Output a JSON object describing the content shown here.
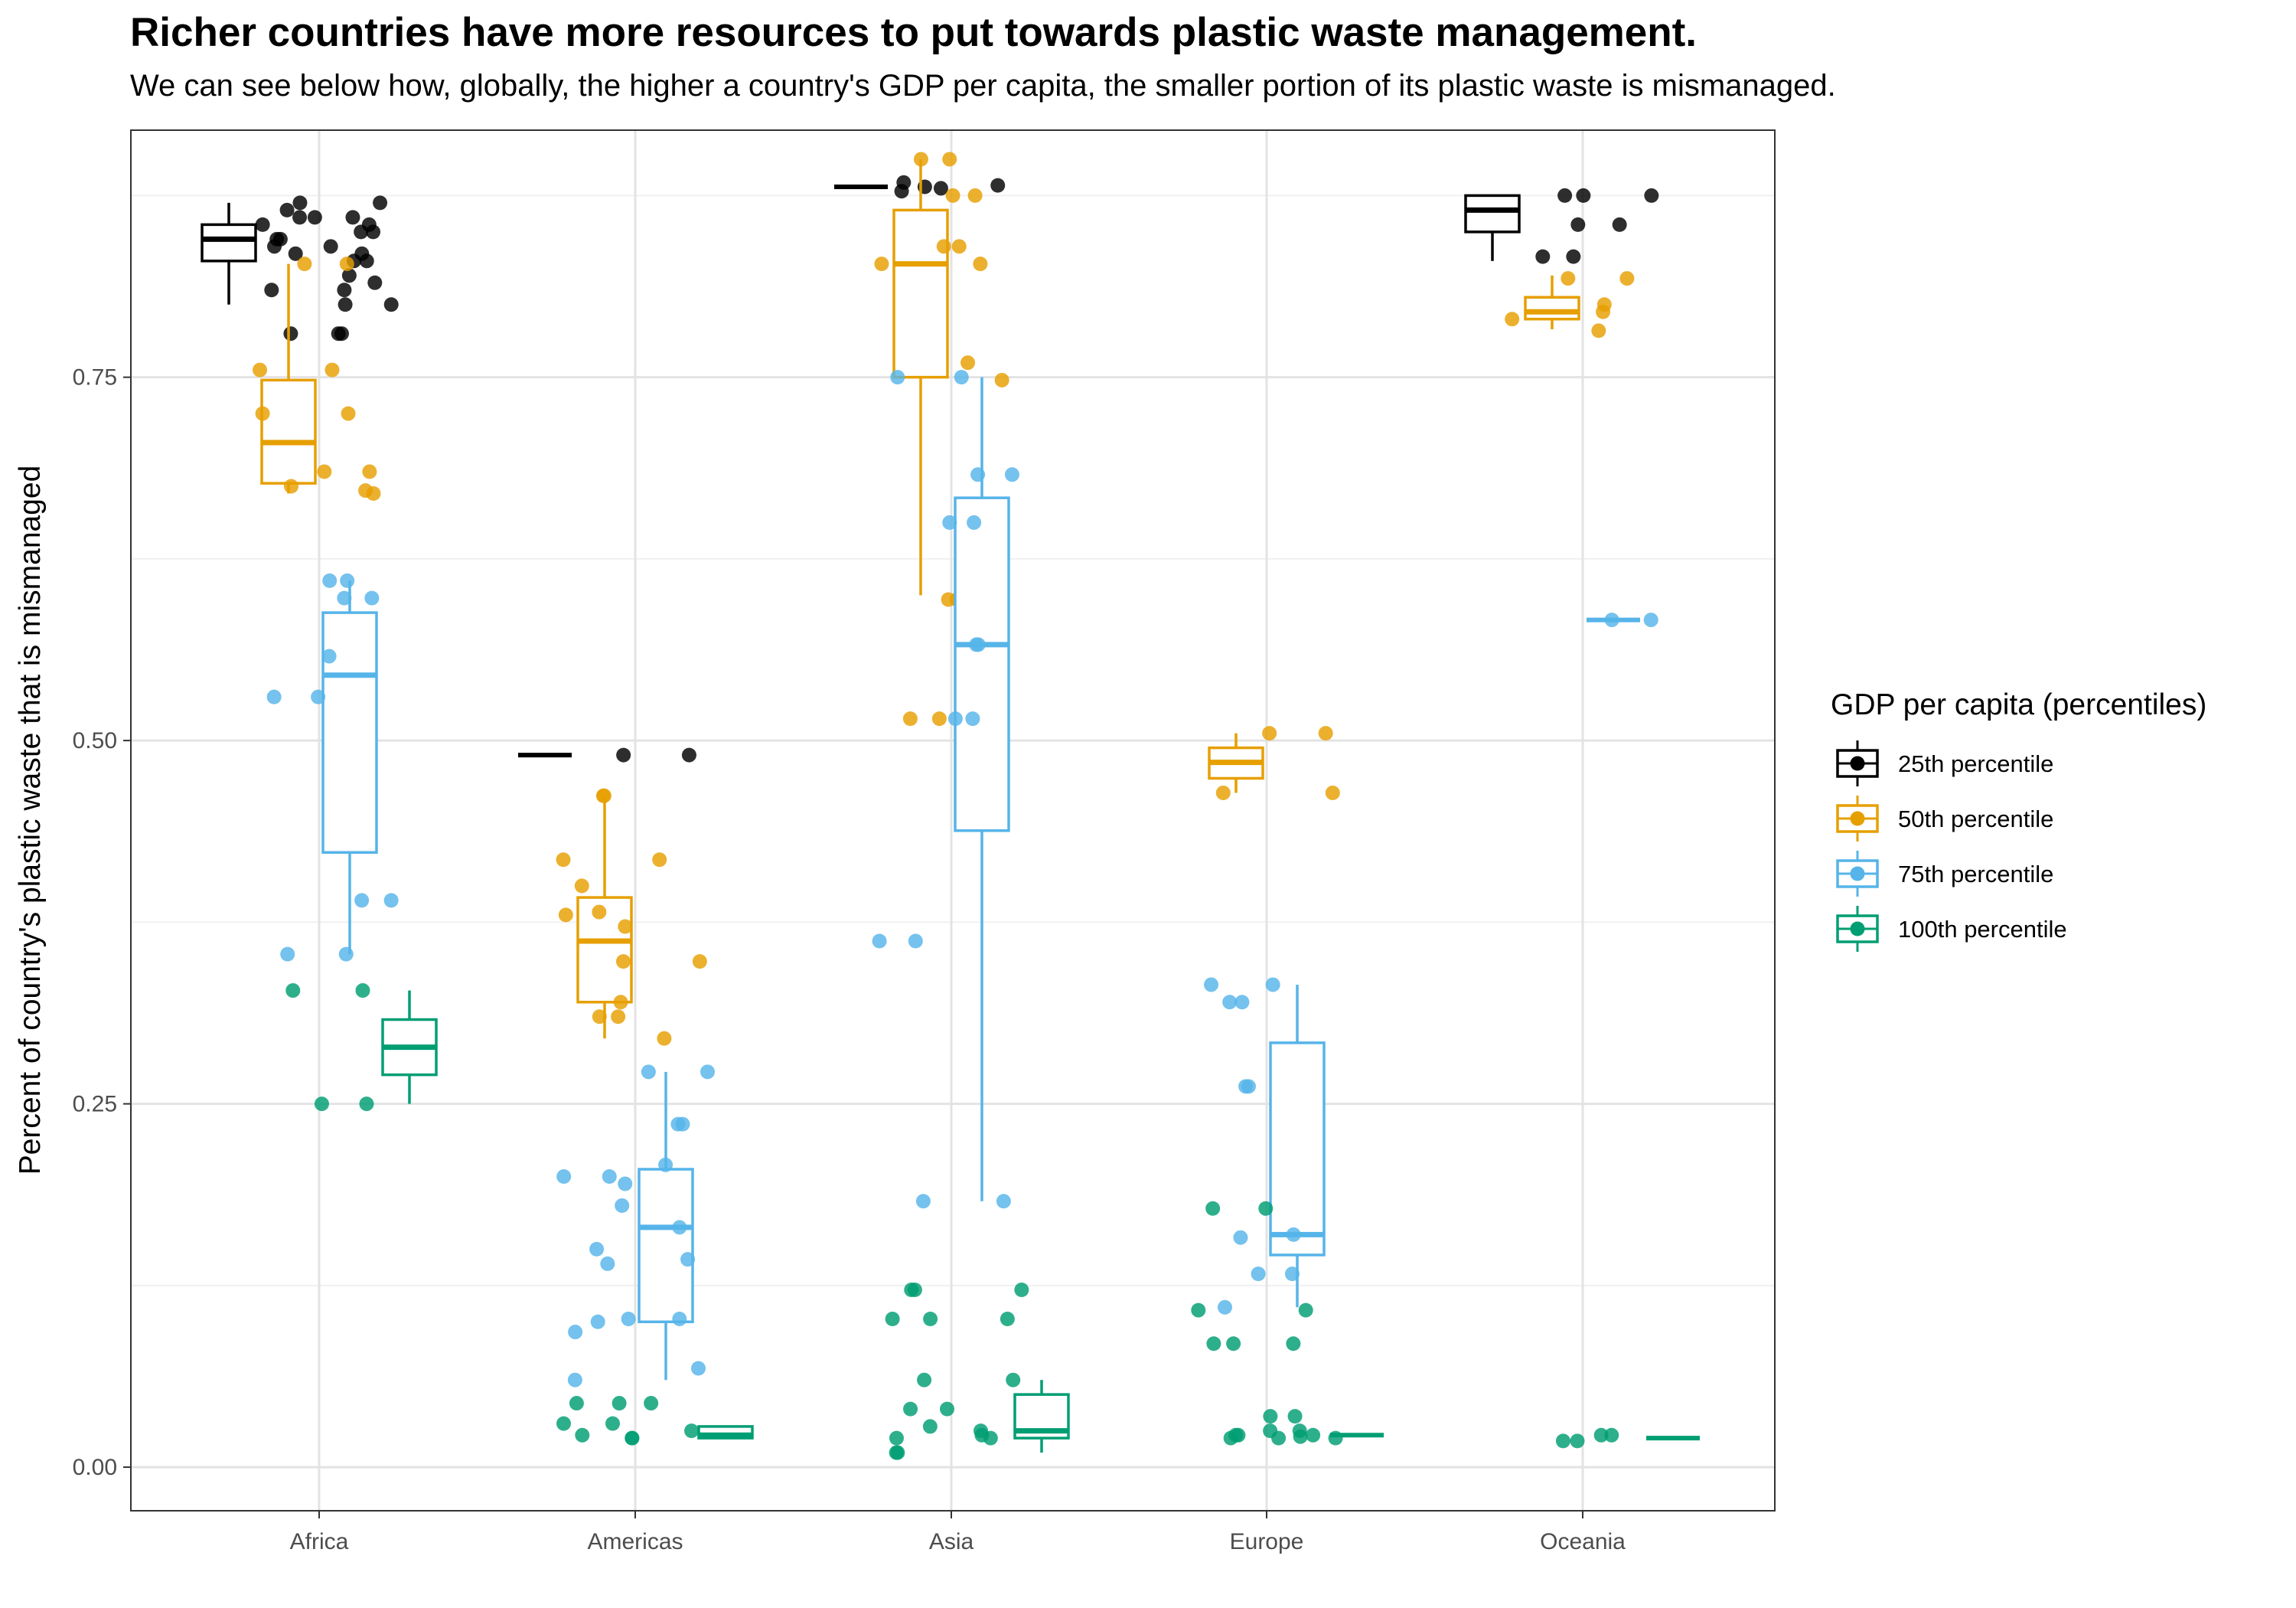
{
  "title": "Richer countries have more resources to put towards plastic waste management.",
  "subtitle": "We can see below how, globally, the higher a country's GDP per capita, the smaller portion of its plastic waste is mismanaged.",
  "chart_data": {
    "type": "box+jitter",
    "title": "Richer countries have more resources to put towards plastic waste management.",
    "subtitle": "We can see below how, globally, the higher a country's GDP per capita, the smaller portion of its plastic waste is mismanaged.",
    "xlabel": "",
    "ylabel": "Percent of country's plastic waste that is mismanaged",
    "categories": [
      "Africa",
      "Americas",
      "Asia",
      "Europe",
      "Oceania"
    ],
    "ylim": [
      -0.03,
      0.92
    ],
    "yticks": [
      0.0,
      0.25,
      0.5,
      0.75
    ],
    "ytick_labels": [
      "0.00",
      "0.25",
      "0.50",
      "0.75"
    ],
    "grid": true,
    "legend": {
      "title": "GDP per capita (percentiles)",
      "position": "right"
    },
    "series": [
      {
        "name": "25th percentile",
        "color": "#000000",
        "boxes": [
          {
            "category": "Africa",
            "ymin": 0.8,
            "q1": 0.83,
            "median": 0.845,
            "q3": 0.855,
            "ymax": 0.87
          },
          {
            "category": "Americas",
            "ymin": 0.49,
            "q1": 0.49,
            "median": 0.49,
            "q3": 0.49,
            "ymax": 0.49
          },
          {
            "category": "Asia",
            "ymin": 0.881,
            "q1": 0.881,
            "median": 0.881,
            "q3": 0.881,
            "ymax": 0.881
          },
          {
            "category": "Oceania",
            "ymin": 0.83,
            "q1": 0.85,
            "median": 0.865,
            "q3": 0.875,
            "ymax": 0.875
          }
        ],
        "points": [
          {
            "category": "Africa",
            "values": [
              0.78,
              0.78,
              0.78,
              0.8,
              0.8,
              0.81,
              0.81,
              0.815,
              0.82,
              0.83,
              0.83,
              0.835,
              0.835,
              0.84,
              0.84,
              0.845,
              0.845,
              0.85,
              0.85,
              0.855,
              0.855,
              0.86,
              0.86,
              0.86,
              0.865,
              0.87,
              0.87
            ]
          },
          {
            "category": "Americas",
            "values": [
              0.49,
              0.49
            ]
          },
          {
            "category": "Asia",
            "values": [
              0.88,
              0.882,
              0.884,
              0.878,
              0.881
            ]
          },
          {
            "category": "Oceania",
            "values": [
              0.875,
              0.875,
              0.875,
              0.855,
              0.855,
              0.833,
              0.833
            ]
          }
        ]
      },
      {
        "name": "50th percentile",
        "color": "#E69F00",
        "boxes": [
          {
            "category": "Africa",
            "ymin": 0.67,
            "q1": 0.677,
            "median": 0.705,
            "q3": 0.748,
            "ymax": 0.828
          },
          {
            "category": "Americas",
            "ymin": 0.295,
            "q1": 0.32,
            "median": 0.362,
            "q3": 0.392,
            "ymax": 0.462
          },
          {
            "category": "Asia",
            "ymin": 0.6,
            "q1": 0.75,
            "median": 0.828,
            "q3": 0.865,
            "ymax": 0.9
          },
          {
            "category": "Europe",
            "ymin": 0.464,
            "q1": 0.474,
            "median": 0.485,
            "q3": 0.495,
            "ymax": 0.505
          },
          {
            "category": "Oceania",
            "ymin": 0.783,
            "q1": 0.79,
            "median": 0.795,
            "q3": 0.805,
            "ymax": 0.82
          }
        ],
        "points": [
          {
            "category": "Africa",
            "values": [
              0.67,
              0.672,
              0.675,
              0.685,
              0.685,
              0.725,
              0.725,
              0.755,
              0.755,
              0.828,
              0.828
            ]
          },
          {
            "category": "Americas",
            "values": [
              0.295,
              0.31,
              0.31,
              0.32,
              0.348,
              0.348,
              0.372,
              0.38,
              0.382,
              0.4,
              0.418,
              0.418,
              0.462,
              0.462
            ]
          },
          {
            "category": "Asia",
            "values": [
              0.515,
              0.515,
              0.515,
              0.597,
              0.597,
              0.748,
              0.76,
              0.828,
              0.828,
              0.84,
              0.84,
              0.875,
              0.875,
              0.9,
              0.9
            ]
          },
          {
            "category": "Europe",
            "values": [
              0.464,
              0.464,
              0.505,
              0.505
            ]
          },
          {
            "category": "Oceania",
            "values": [
              0.782,
              0.79,
              0.795,
              0.8,
              0.818,
              0.818
            ]
          }
        ]
      },
      {
        "name": "75th percentile",
        "color": "#56B4E9",
        "boxes": [
          {
            "category": "Africa",
            "ymin": 0.353,
            "q1": 0.423,
            "median": 0.545,
            "q3": 0.588,
            "ymax": 0.61
          },
          {
            "category": "Americas",
            "ymin": 0.06,
            "q1": 0.1,
            "median": 0.165,
            "q3": 0.205,
            "ymax": 0.272
          },
          {
            "category": "Asia",
            "ymin": 0.183,
            "q1": 0.438,
            "median": 0.566,
            "q3": 0.667,
            "ymax": 0.75
          },
          {
            "category": "Europe",
            "ymin": 0.11,
            "q1": 0.146,
            "median": 0.16,
            "q3": 0.292,
            "ymax": 0.332
          },
          {
            "category": "Oceania",
            "ymin": 0.583,
            "q1": 0.583,
            "median": 0.583,
            "q3": 0.583,
            "ymax": 0.583
          }
        ],
        "points": [
          {
            "category": "Africa",
            "values": [
              0.353,
              0.353,
              0.39,
              0.39,
              0.53,
              0.53,
              0.558,
              0.598,
              0.598,
              0.61,
              0.61
            ]
          },
          {
            "category": "Americas",
            "values": [
              0.06,
              0.068,
              0.093,
              0.1,
              0.102,
              0.102,
              0.14,
              0.143,
              0.15,
              0.165,
              0.18,
              0.195,
              0.2,
              0.2,
              0.208,
              0.236,
              0.236,
              0.272,
              0.272
            ]
          },
          {
            "category": "Asia",
            "values": [
              0.183,
              0.183,
              0.362,
              0.362,
              0.515,
              0.515,
              0.566,
              0.566,
              0.65,
              0.65,
              0.683,
              0.683,
              0.75,
              0.75
            ]
          },
          {
            "category": "Europe",
            "values": [
              0.11,
              0.133,
              0.133,
              0.158,
              0.16,
              0.262,
              0.262,
              0.32,
              0.32,
              0.332,
              0.332
            ]
          },
          {
            "category": "Oceania",
            "values": [
              0.583,
              0.583
            ]
          }
        ]
      },
      {
        "name": "100th percentile",
        "color": "#009E73",
        "boxes": [
          {
            "category": "Africa",
            "ymin": 0.25,
            "q1": 0.27,
            "median": 0.289,
            "q3": 0.308,
            "ymax": 0.328
          },
          {
            "category": "Americas",
            "ymin": 0.02,
            "q1": 0.02,
            "median": 0.022,
            "q3": 0.028,
            "ymax": 0.028
          },
          {
            "category": "Asia",
            "ymin": 0.01,
            "q1": 0.02,
            "median": 0.025,
            "q3": 0.05,
            "ymax": 0.06
          },
          {
            "category": "Europe",
            "ymin": 0.022,
            "q1": 0.022,
            "median": 0.022,
            "q3": 0.022,
            "ymax": 0.022
          },
          {
            "category": "Oceania",
            "ymin": 0.02,
            "q1": 0.02,
            "median": 0.02,
            "q3": 0.02,
            "ymax": 0.02
          }
        ],
        "points": [
          {
            "category": "Africa",
            "values": [
              0.25,
              0.25,
              0.328,
              0.328
            ]
          },
          {
            "category": "Americas",
            "values": [
              0.02,
              0.02,
              0.022,
              0.025,
              0.03,
              0.03,
              0.044,
              0.044,
              0.044
            ]
          },
          {
            "category": "Asia",
            "values": [
              0.01,
              0.01,
              0.02,
              0.02,
              0.022,
              0.025,
              0.028,
              0.04,
              0.04,
              0.06,
              0.06,
              0.102,
              0.102,
              0.102,
              0.122,
              0.122,
              0.122
            ]
          },
          {
            "category": "Europe",
            "values": [
              0.02,
              0.02,
              0.02,
              0.021,
              0.022,
              0.022,
              0.022,
              0.025,
              0.025,
              0.035,
              0.035,
              0.085,
              0.085,
              0.085,
              0.108,
              0.108,
              0.178,
              0.178
            ]
          },
          {
            "category": "Oceania",
            "values": [
              0.018,
              0.018,
              0.022,
              0.022
            ]
          }
        ]
      }
    ]
  }
}
